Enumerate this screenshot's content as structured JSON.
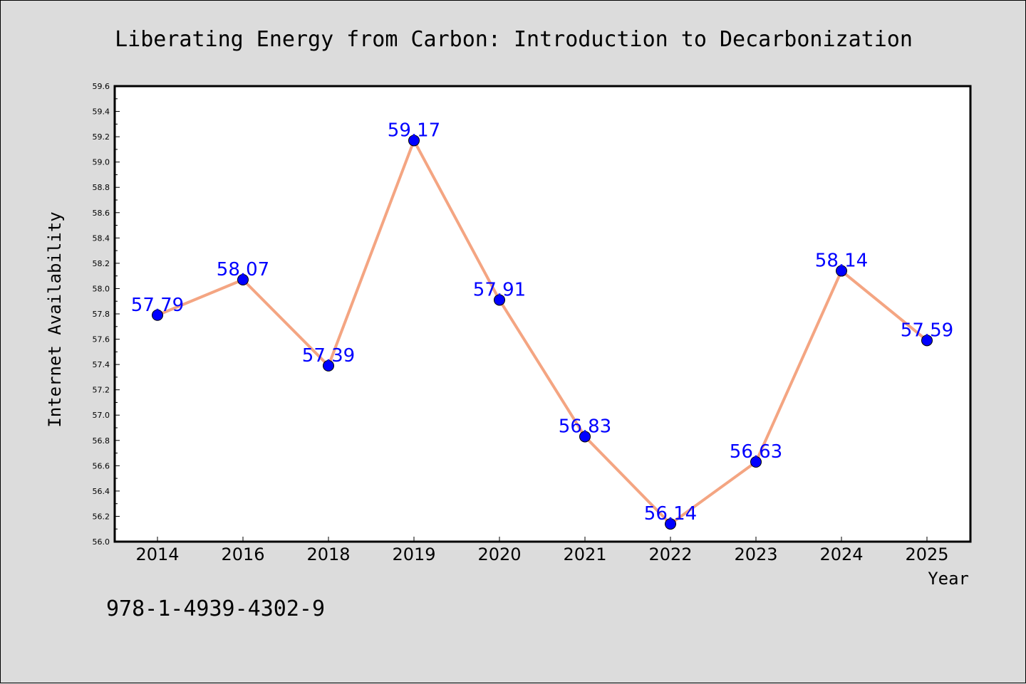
{
  "chart_data": {
    "type": "line",
    "title": "Liberating Energy from Carbon: Introduction to Decarbonization",
    "xlabel": "Year",
    "ylabel": "Internet Availability",
    "categories": [
      "2014",
      "2016",
      "2018",
      "2019",
      "2020",
      "2021",
      "2022",
      "2023",
      "2024",
      "2025"
    ],
    "series": [
      {
        "values": [
          57.79,
          58.07,
          57.39,
          59.17,
          57.91,
          56.83,
          56.14,
          56.63,
          58.14,
          57.59
        ],
        "line_color": "#f4a582",
        "marker_color": "#0000ff"
      }
    ],
    "data_labels": [
      "57.79",
      "58.07",
      "57.39",
      "59.17",
      "57.91",
      "56.83",
      "56.14",
      "56.63",
      "58.14",
      "57.59"
    ],
    "ylim": [
      56.0,
      59.6
    ],
    "yticks": [
      "56.0",
      "56.2",
      "56.4",
      "56.6",
      "56.8",
      "57.0",
      "57.2",
      "57.4",
      "57.6",
      "57.8",
      "58.0",
      "58.2",
      "58.4",
      "58.6",
      "58.8",
      "59.0",
      "59.2",
      "59.4",
      "59.6"
    ],
    "grid": false,
    "legend": "none"
  },
  "footer": {
    "isbn": "978-1-4939-4302-9"
  },
  "colors": {
    "background": "#dcdcdc",
    "plot_background": "#ffffff",
    "line": "#f4a582",
    "marker": "#0000ff",
    "data_label": "#0000ff"
  }
}
